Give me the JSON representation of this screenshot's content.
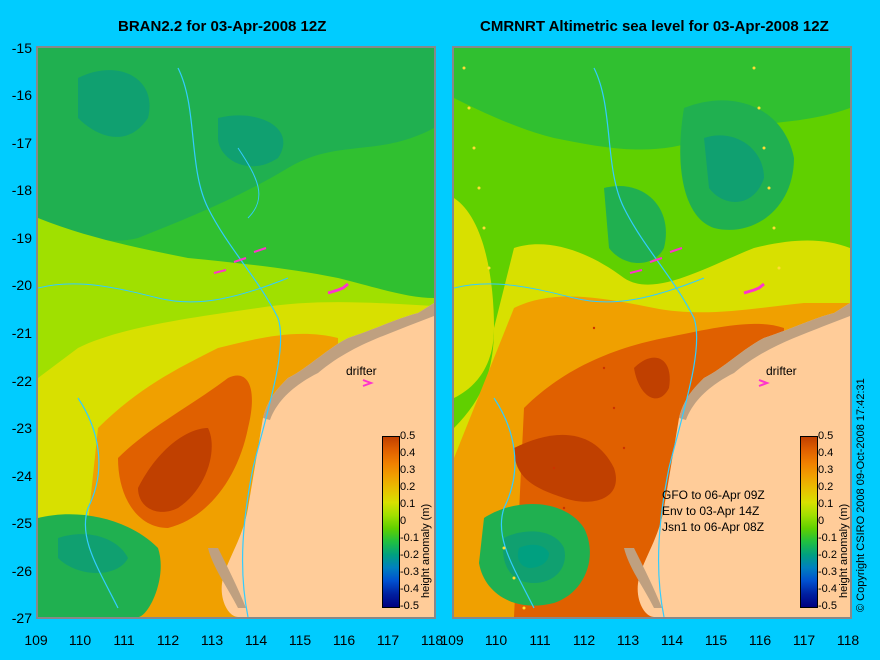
{
  "left_panel": {
    "title": "BRAN2.2 for 03-Apr-2008 12Z",
    "drifter_label": "drifter"
  },
  "right_panel": {
    "title": "CMRNRT Altimetric sea level  for 03-Apr-2008 12Z",
    "drifter_label": "drifter",
    "notes": [
      "GFO to 06-Apr 09Z",
      "Env to 03-Apr 14Z",
      "Jsn1 to 06-Apr 08Z"
    ]
  },
  "y_ticks": [
    "-15",
    "-16",
    "-17",
    "-18",
    "-19",
    "-20",
    "-21",
    "-22",
    "-23",
    "-24",
    "-25",
    "-26",
    "-27"
  ],
  "x_ticks": [
    "109",
    "110",
    "111",
    "112",
    "113",
    "114",
    "115",
    "116",
    "117",
    "118"
  ],
  "colorbar": {
    "title": "height anomaly (m)",
    "ticks": [
      "0.5",
      "0.4",
      "0.3",
      "0.2",
      "0.1",
      "0",
      "-0.1",
      "-0.2",
      "-0.3",
      "-0.4",
      "-0.5"
    ],
    "colors": [
      "#c04000",
      "#e06000",
      "#f08000",
      "#f0a000",
      "#e8c000",
      "#d8e000",
      "#a0e000",
      "#60d000",
      "#20c040",
      "#00a080",
      "#0080c0",
      "#0050d0",
      "#0020a0",
      "#000080"
    ]
  },
  "copyright": "© Copyright CSIRO 2008     09-Oct-2008 17:42:31",
  "colors": {
    "land": "#ffcc99",
    "coast": "#bfa080",
    "bathy": "#33ccff",
    "drifter": "#ff33cc",
    "background": "#00ccff"
  }
}
